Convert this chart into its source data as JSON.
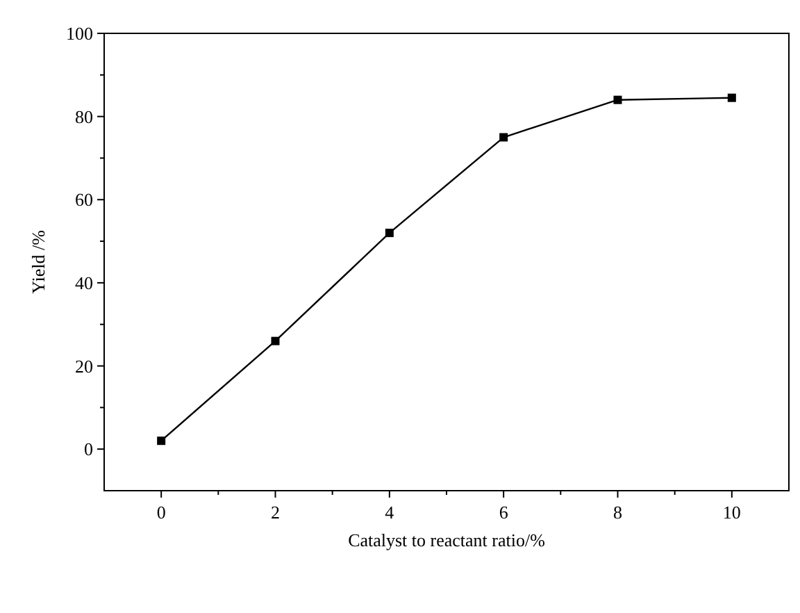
{
  "chart_data": {
    "type": "line",
    "xlabel": "Catalyst to reactant ratio/%",
    "ylabel": "Yield /%",
    "x": [
      0,
      2,
      4,
      6,
      8,
      10
    ],
    "series": [
      {
        "color": "#000000",
        "values": [
          2,
          26,
          52,
          75,
          84,
          84.5
        ]
      }
    ],
    "xlim": [
      -1,
      11
    ],
    "ylim": [
      -10,
      100
    ],
    "xticks": [
      0,
      {
        "value": 1,
        "label": null
      },
      2,
      {
        "value": 3,
        "label": null
      },
      4,
      {
        "value": 5,
        "label": null
      },
      6,
      {
        "value": 7,
        "label": null
      },
      8,
      {
        "value": 9,
        "label": null
      },
      10
    ],
    "yticks": [
      0,
      {
        "value": 10,
        "label": null
      },
      20,
      {
        "value": 30,
        "label": null
      },
      40,
      {
        "value": 50,
        "label": null
      },
      60,
      {
        "value": 70,
        "label": null
      },
      80,
      {
        "value": 90,
        "label": null
      },
      100
    ],
    "marker": "square",
    "line_style": "solid"
  }
}
